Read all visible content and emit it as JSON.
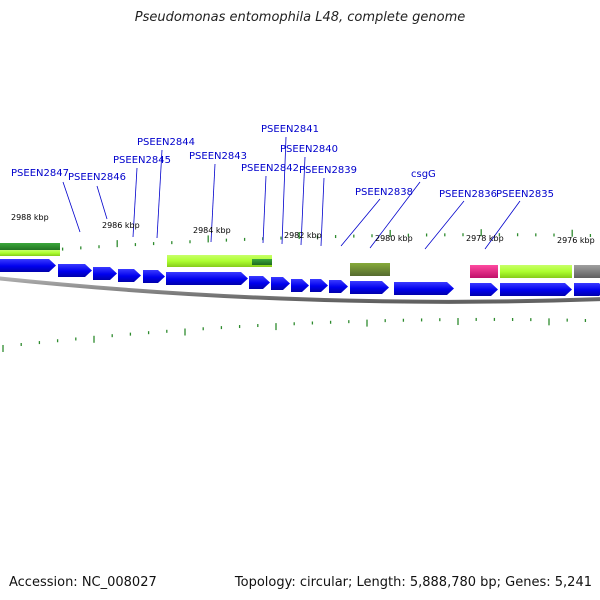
{
  "title": "Pseudomonas entomophila L48, complete genome",
  "footer": {
    "accession": "Accession: NC_008027",
    "summary": "Topology: circular; Length: 5,888,780 bp; Genes: 5,241"
  },
  "colors": {
    "background": "#ffffff",
    "gene_blue": "#0000ee",
    "gene_label": "#0000cc",
    "tick": "#2e8b2e",
    "backbone": "#808080",
    "feature_light_green": "#adff2f",
    "feature_dark_green": "#2e8b2e",
    "feature_olive": "#6b8e23",
    "feature_pink": "#e0207f",
    "feature_gray": "#808080"
  },
  "kbp_labels": [
    "2988 kbp",
    "2986 kbp",
    "2984 kbp",
    "2982 kbp",
    "2980 kbp",
    "2978 kbp",
    "2976 kbp"
  ],
  "gene_labels": [
    "PSEEN2847",
    "PSEEN2846",
    "PSEEN2845",
    "PSEEN2844",
    "PSEEN2843",
    "PSEEN2842",
    "PSEEN2841",
    "PSEEN2840",
    "PSEEN2839",
    "PSEEN2838",
    "csgG",
    "PSEEN2836",
    "PSEEN2835"
  ]
}
